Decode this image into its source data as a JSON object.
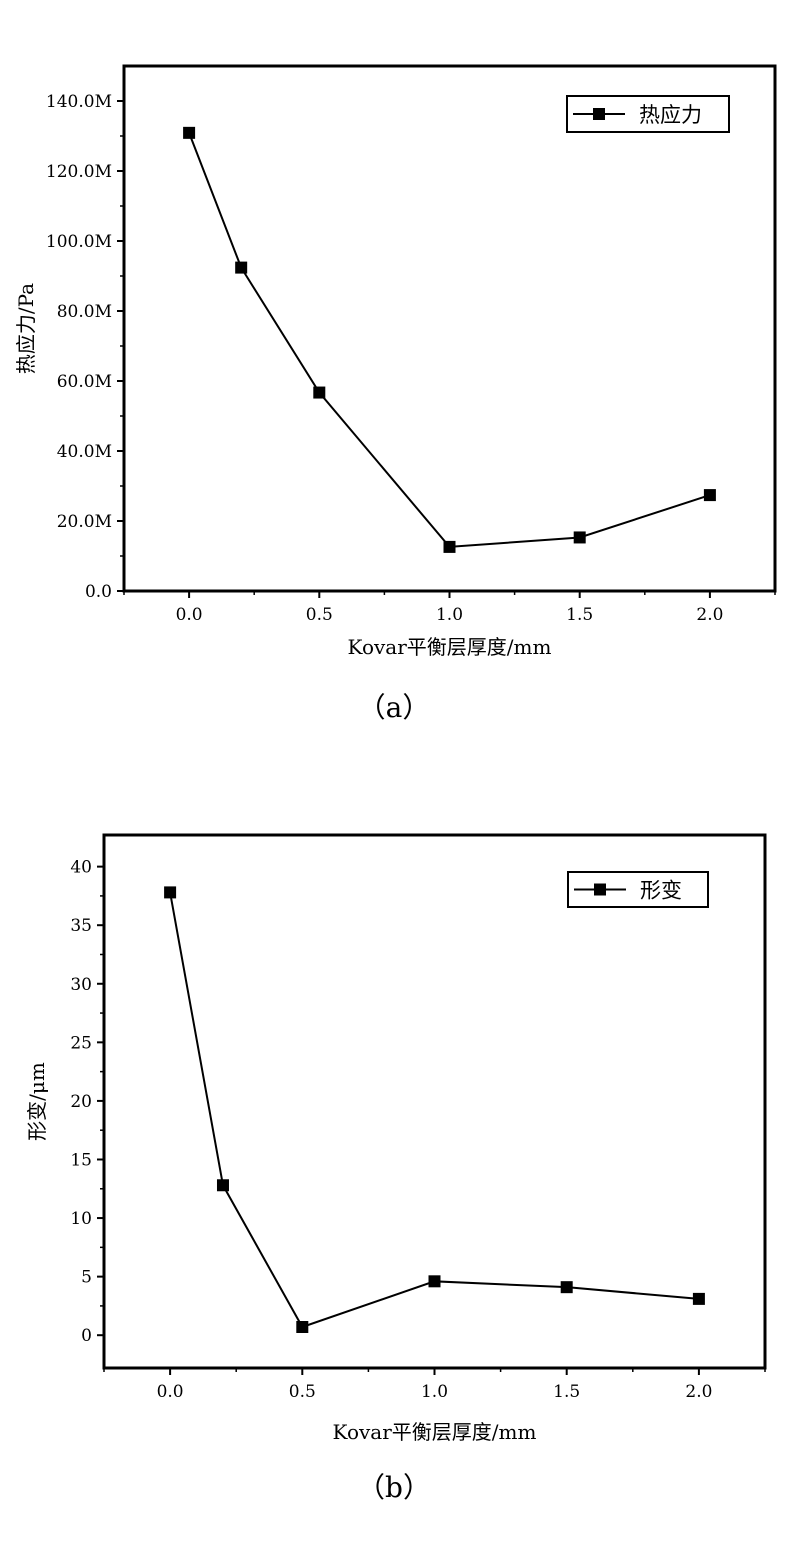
{
  "chart_data": [
    {
      "type": "line",
      "id": "a",
      "caption": "（a）",
      "xlabel": "Kovar平衡层厚度/mm",
      "ylabel": "热应力/Pa",
      "xlim": [
        -0.25,
        2.25
      ],
      "ylim": [
        0,
        150
      ],
      "x_ticks": [
        0.0,
        0.5,
        1.0,
        1.5,
        2.0
      ],
      "x_tick_labels": [
        "0.0",
        "0.5",
        "1.0",
        "1.5",
        "2.0"
      ],
      "y_ticks": [
        0,
        20,
        40,
        60,
        80,
        100,
        120,
        140
      ],
      "y_tick_labels": [
        "0.0",
        "20.0M",
        "40.0M",
        "60.0M",
        "80.0M",
        "100.0M",
        "120.0M",
        "140.0M"
      ],
      "legend_position": "top-right",
      "grid": false,
      "series": [
        {
          "name": "热应力",
          "color": "#000000",
          "marker": "square",
          "x": [
            0.0,
            0.2,
            0.5,
            1.0,
            1.5,
            2.0
          ],
          "y": [
            130.9,
            92.4,
            56.7,
            12.6,
            15.3,
            27.4
          ],
          "unit": "MPa"
        }
      ]
    },
    {
      "type": "line",
      "id": "b",
      "caption": "（b）",
      "xlabel": "Kovar平衡层厚度/mm",
      "ylabel": "形变/μm",
      "xlim": [
        -0.25,
        2.25
      ],
      "ylim": [
        -2.8,
        42.7
      ],
      "x_ticks": [
        0.0,
        0.5,
        1.0,
        1.5,
        2.0
      ],
      "x_tick_labels": [
        "0.0",
        "0.5",
        "1.0",
        "1.5",
        "2.0"
      ],
      "y_ticks": [
        0,
        5,
        10,
        15,
        20,
        25,
        30,
        35,
        40
      ],
      "y_tick_labels": [
        "0",
        "5",
        "10",
        "15",
        "20",
        "25",
        "30",
        "35",
        "40"
      ],
      "legend_position": "top-right",
      "grid": false,
      "series": [
        {
          "name": "形变",
          "color": "#000000",
          "marker": "square",
          "x": [
            0.0,
            0.2,
            0.5,
            1.0,
            1.5,
            2.0
          ],
          "y": [
            37.8,
            12.8,
            0.7,
            4.6,
            4.1,
            3.1
          ]
        }
      ]
    }
  ]
}
